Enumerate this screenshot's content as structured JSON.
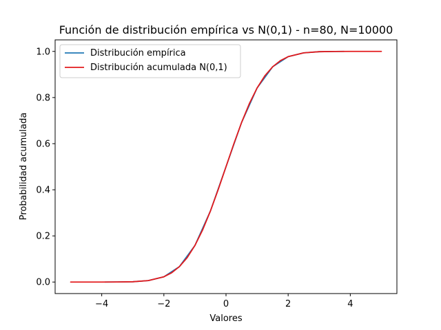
{
  "chart_data": {
    "type": "line",
    "title": "Función de distribución empírica vs N(0,1) - n=80, N=10000",
    "xlabel": "Valores",
    "ylabel": "Probabilidad acumulada",
    "xlim": [
      -5.5,
      5.5
    ],
    "ylim": [
      -0.05,
      1.05
    ],
    "xticks": [
      -4,
      -2,
      0,
      2,
      4
    ],
    "xtick_labels": [
      "−4",
      "−2",
      "0",
      "2",
      "4"
    ],
    "yticks": [
      0.0,
      0.2,
      0.4,
      0.6,
      0.8,
      1.0
    ],
    "ytick_labels": [
      "0.0",
      "0.2",
      "0.4",
      "0.6",
      "0.8",
      "1.0"
    ],
    "grid": false,
    "legend_position": "top-left",
    "series": [
      {
        "name": "Distribución empírica",
        "color": "#1f77b4",
        "x": [
          -3.9,
          -3.5,
          -3.0,
          -2.5,
          -2.0,
          -1.5,
          -1.0,
          -0.5,
          0.0,
          0.5,
          1.0,
          1.5,
          2.0,
          2.5,
          3.0,
          3.5,
          3.8
        ],
        "y": [
          0.0,
          0.0002,
          0.0013,
          0.0062,
          0.0228,
          0.0668,
          0.1587,
          0.3085,
          0.5,
          0.6915,
          0.8413,
          0.9332,
          0.9772,
          0.9938,
          0.9987,
          0.9998,
          1.0
        ]
      },
      {
        "name": "Distribución acumulada N(0,1)",
        "color": "#e31a1c",
        "x": [
          -5.0,
          -4.0,
          -3.5,
          -3.0,
          -2.5,
          -2.0,
          -1.75,
          -1.5,
          -1.25,
          -1.0,
          -0.75,
          -0.5,
          -0.25,
          0.0,
          0.25,
          0.5,
          0.75,
          1.0,
          1.25,
          1.5,
          1.75,
          2.0,
          2.5,
          3.0,
          3.5,
          4.0,
          5.0
        ],
        "y": [
          0.0,
          3e-05,
          0.0002,
          0.0013,
          0.0062,
          0.0228,
          0.0401,
          0.0668,
          0.1056,
          0.1587,
          0.2266,
          0.3085,
          0.4013,
          0.5,
          0.5987,
          0.6915,
          0.7734,
          0.8413,
          0.8944,
          0.9332,
          0.9599,
          0.9772,
          0.9938,
          0.9987,
          0.9998,
          0.99997,
          1.0
        ]
      }
    ]
  }
}
